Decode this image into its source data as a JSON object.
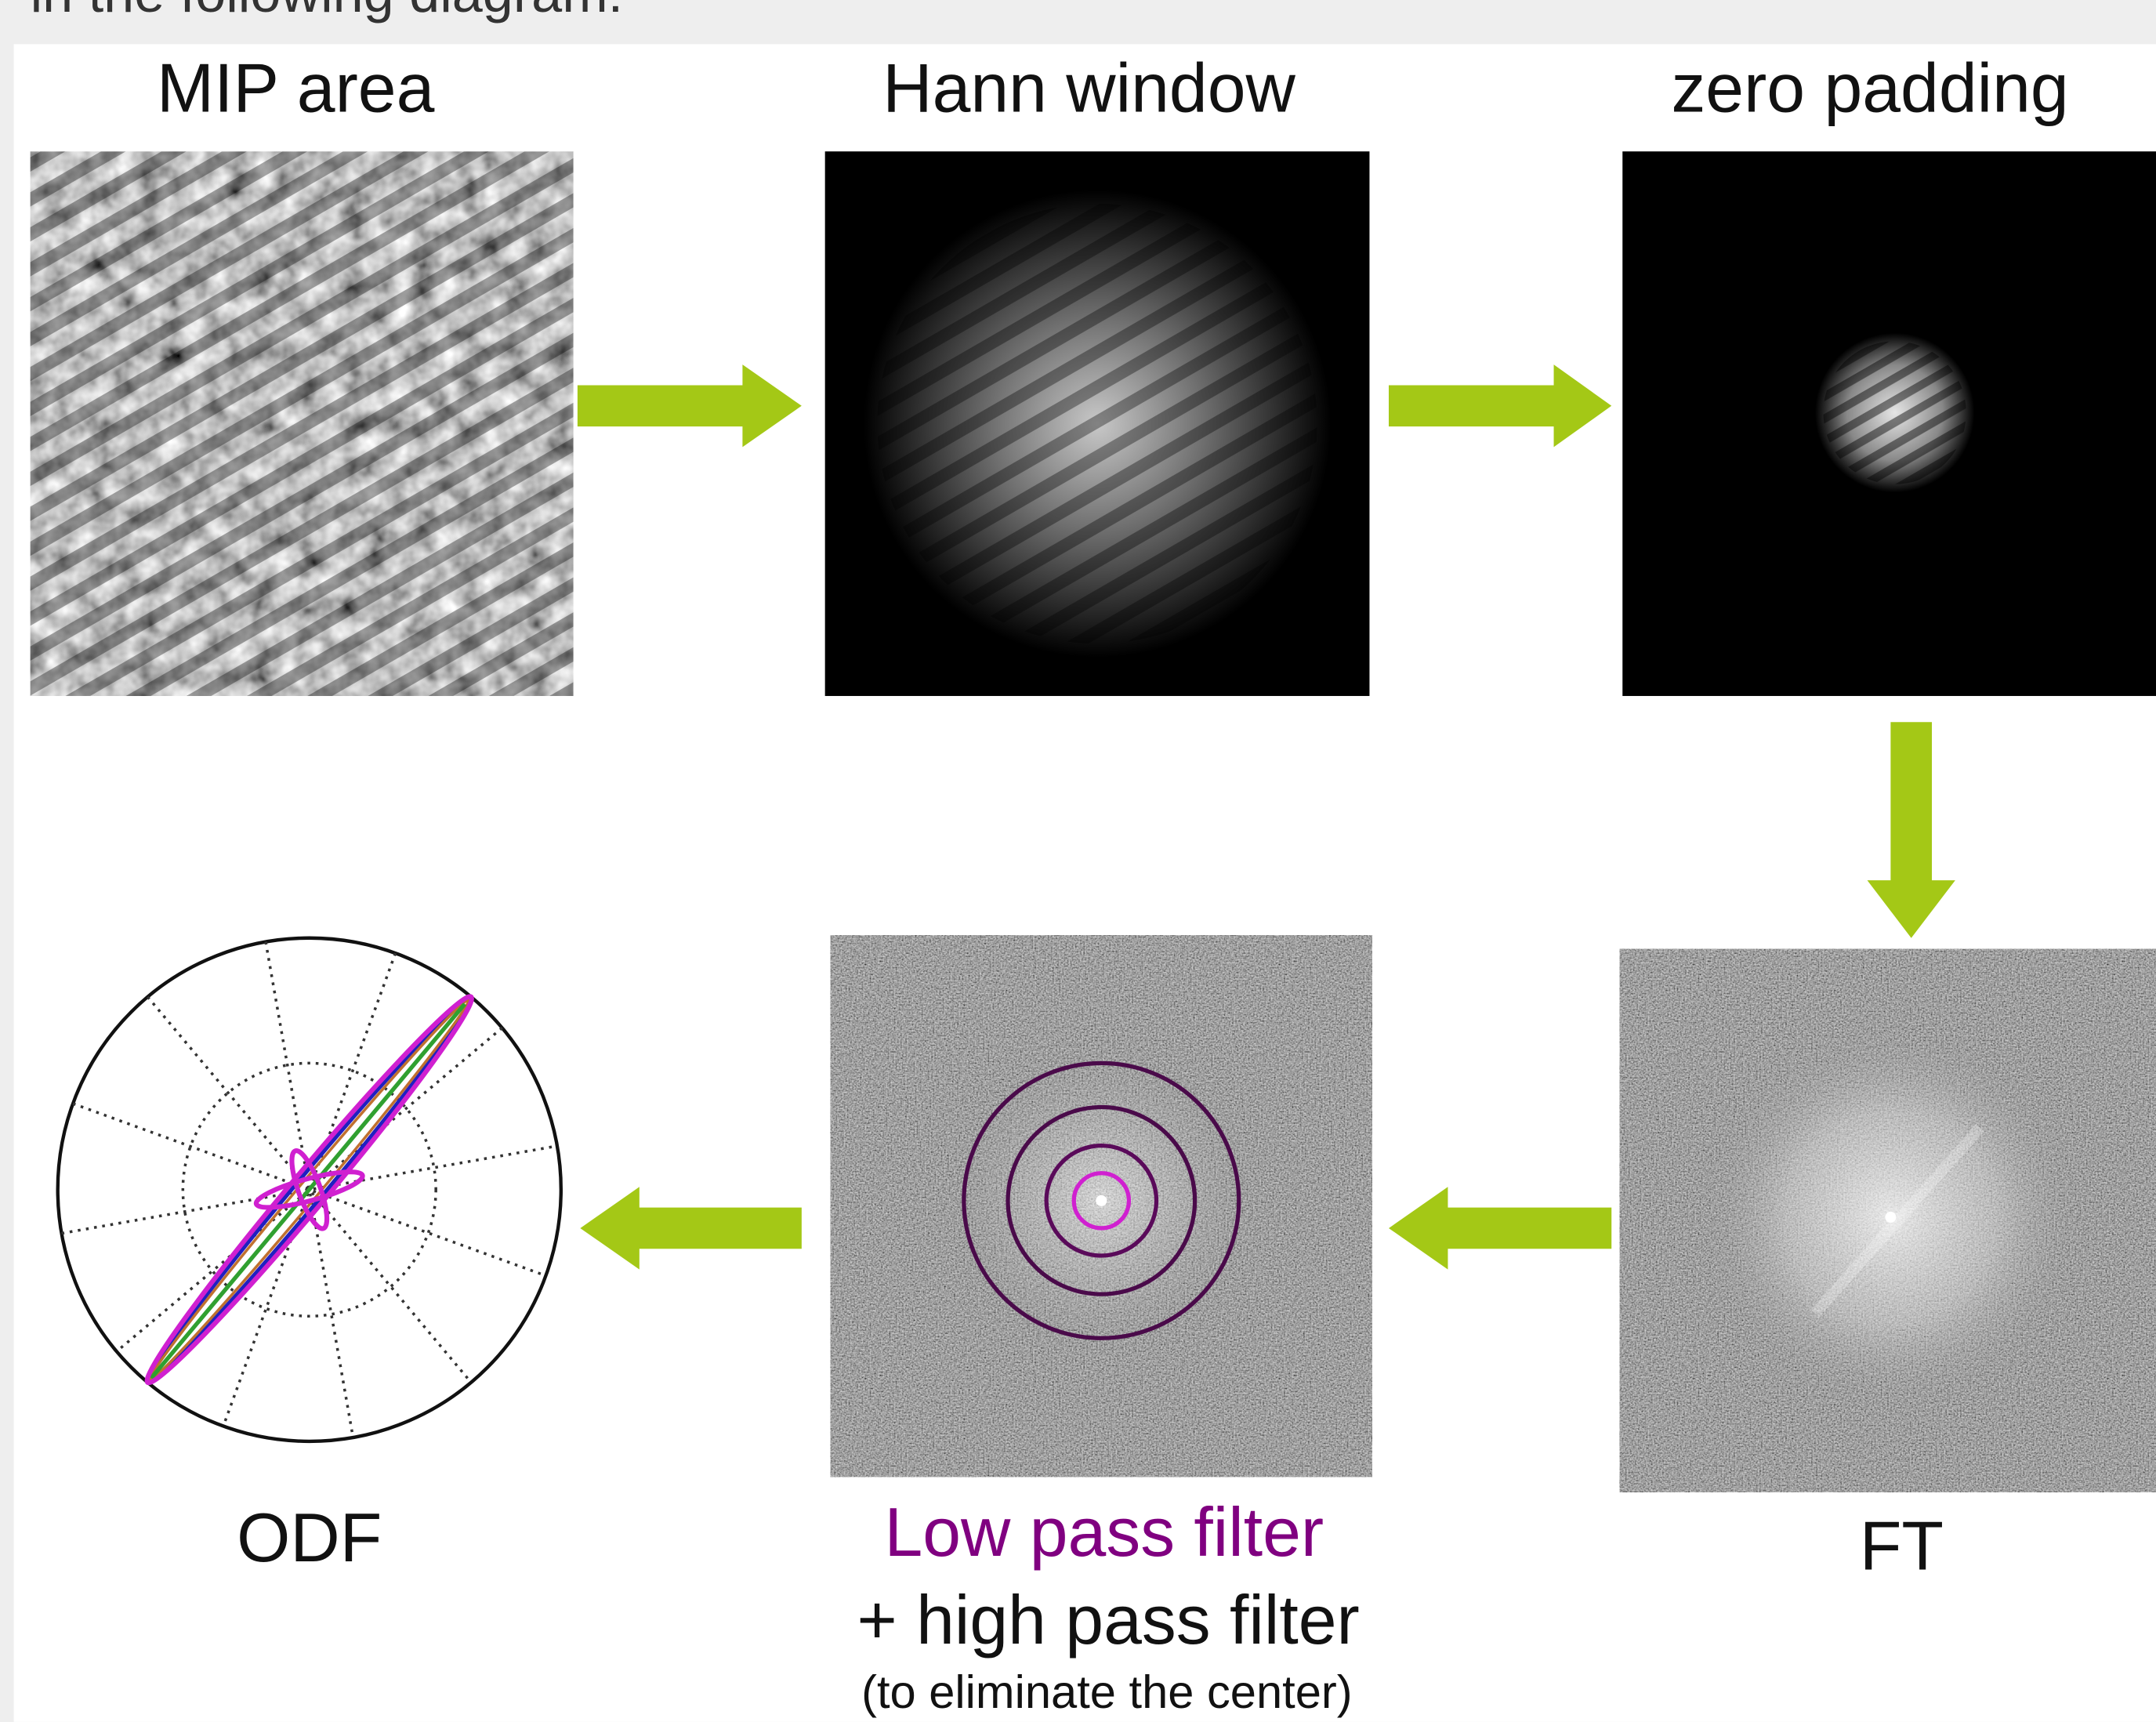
{
  "header": {
    "text": "in the following diagram:"
  },
  "panels": [
    {
      "title": "MIP area"
    },
    {
      "title": "Hann window"
    },
    {
      "title": "zero padding"
    },
    {
      "title": "FT"
    },
    {
      "title": "Low pass filter",
      "subtitle": "+ high pass filter",
      "note": "(to eliminate the center)"
    },
    {
      "title": "ODF"
    }
  ]
}
